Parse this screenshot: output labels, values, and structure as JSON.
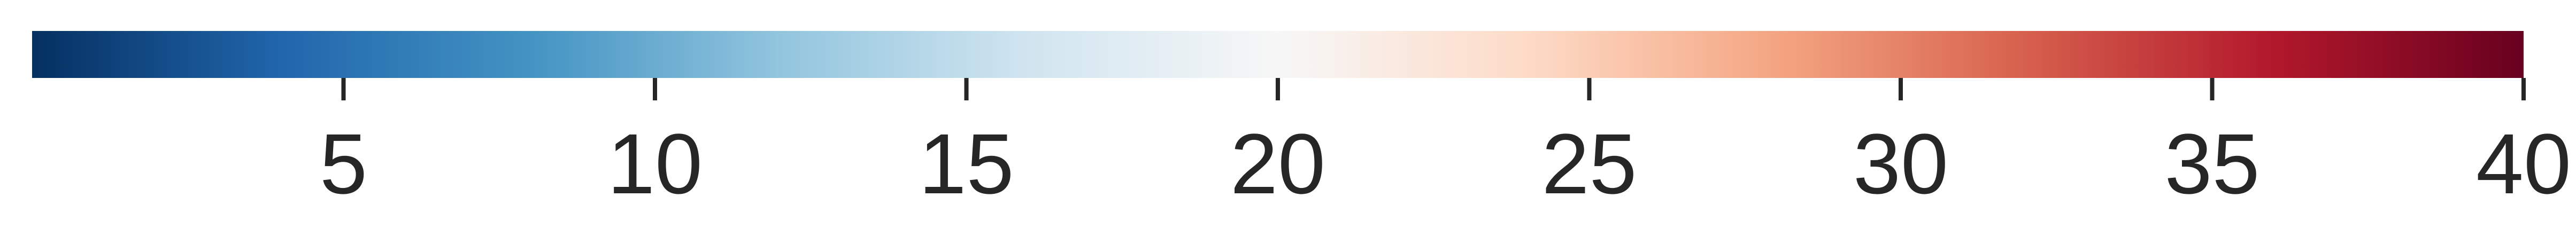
{
  "chart_data": {
    "type": "heatmap",
    "colormap": "RdBu_r",
    "orientation": "horizontal",
    "vmin": 0,
    "vmax": 40,
    "ticks": [
      5,
      10,
      15,
      20,
      25,
      30,
      35,
      40
    ],
    "tick_labels": [
      "5",
      "10",
      "15",
      "20",
      "25",
      "30",
      "35",
      "40"
    ],
    "colors": {
      "stops": [
        "#053061",
        "#2166ac",
        "#4393c3",
        "#92c5de",
        "#d1e5f0",
        "#f7f7f7",
        "#fddbc7",
        "#f4a582",
        "#d6604d",
        "#b2182b",
        "#67001f"
      ],
      "tick": "#262626",
      "text": "#262626"
    }
  }
}
